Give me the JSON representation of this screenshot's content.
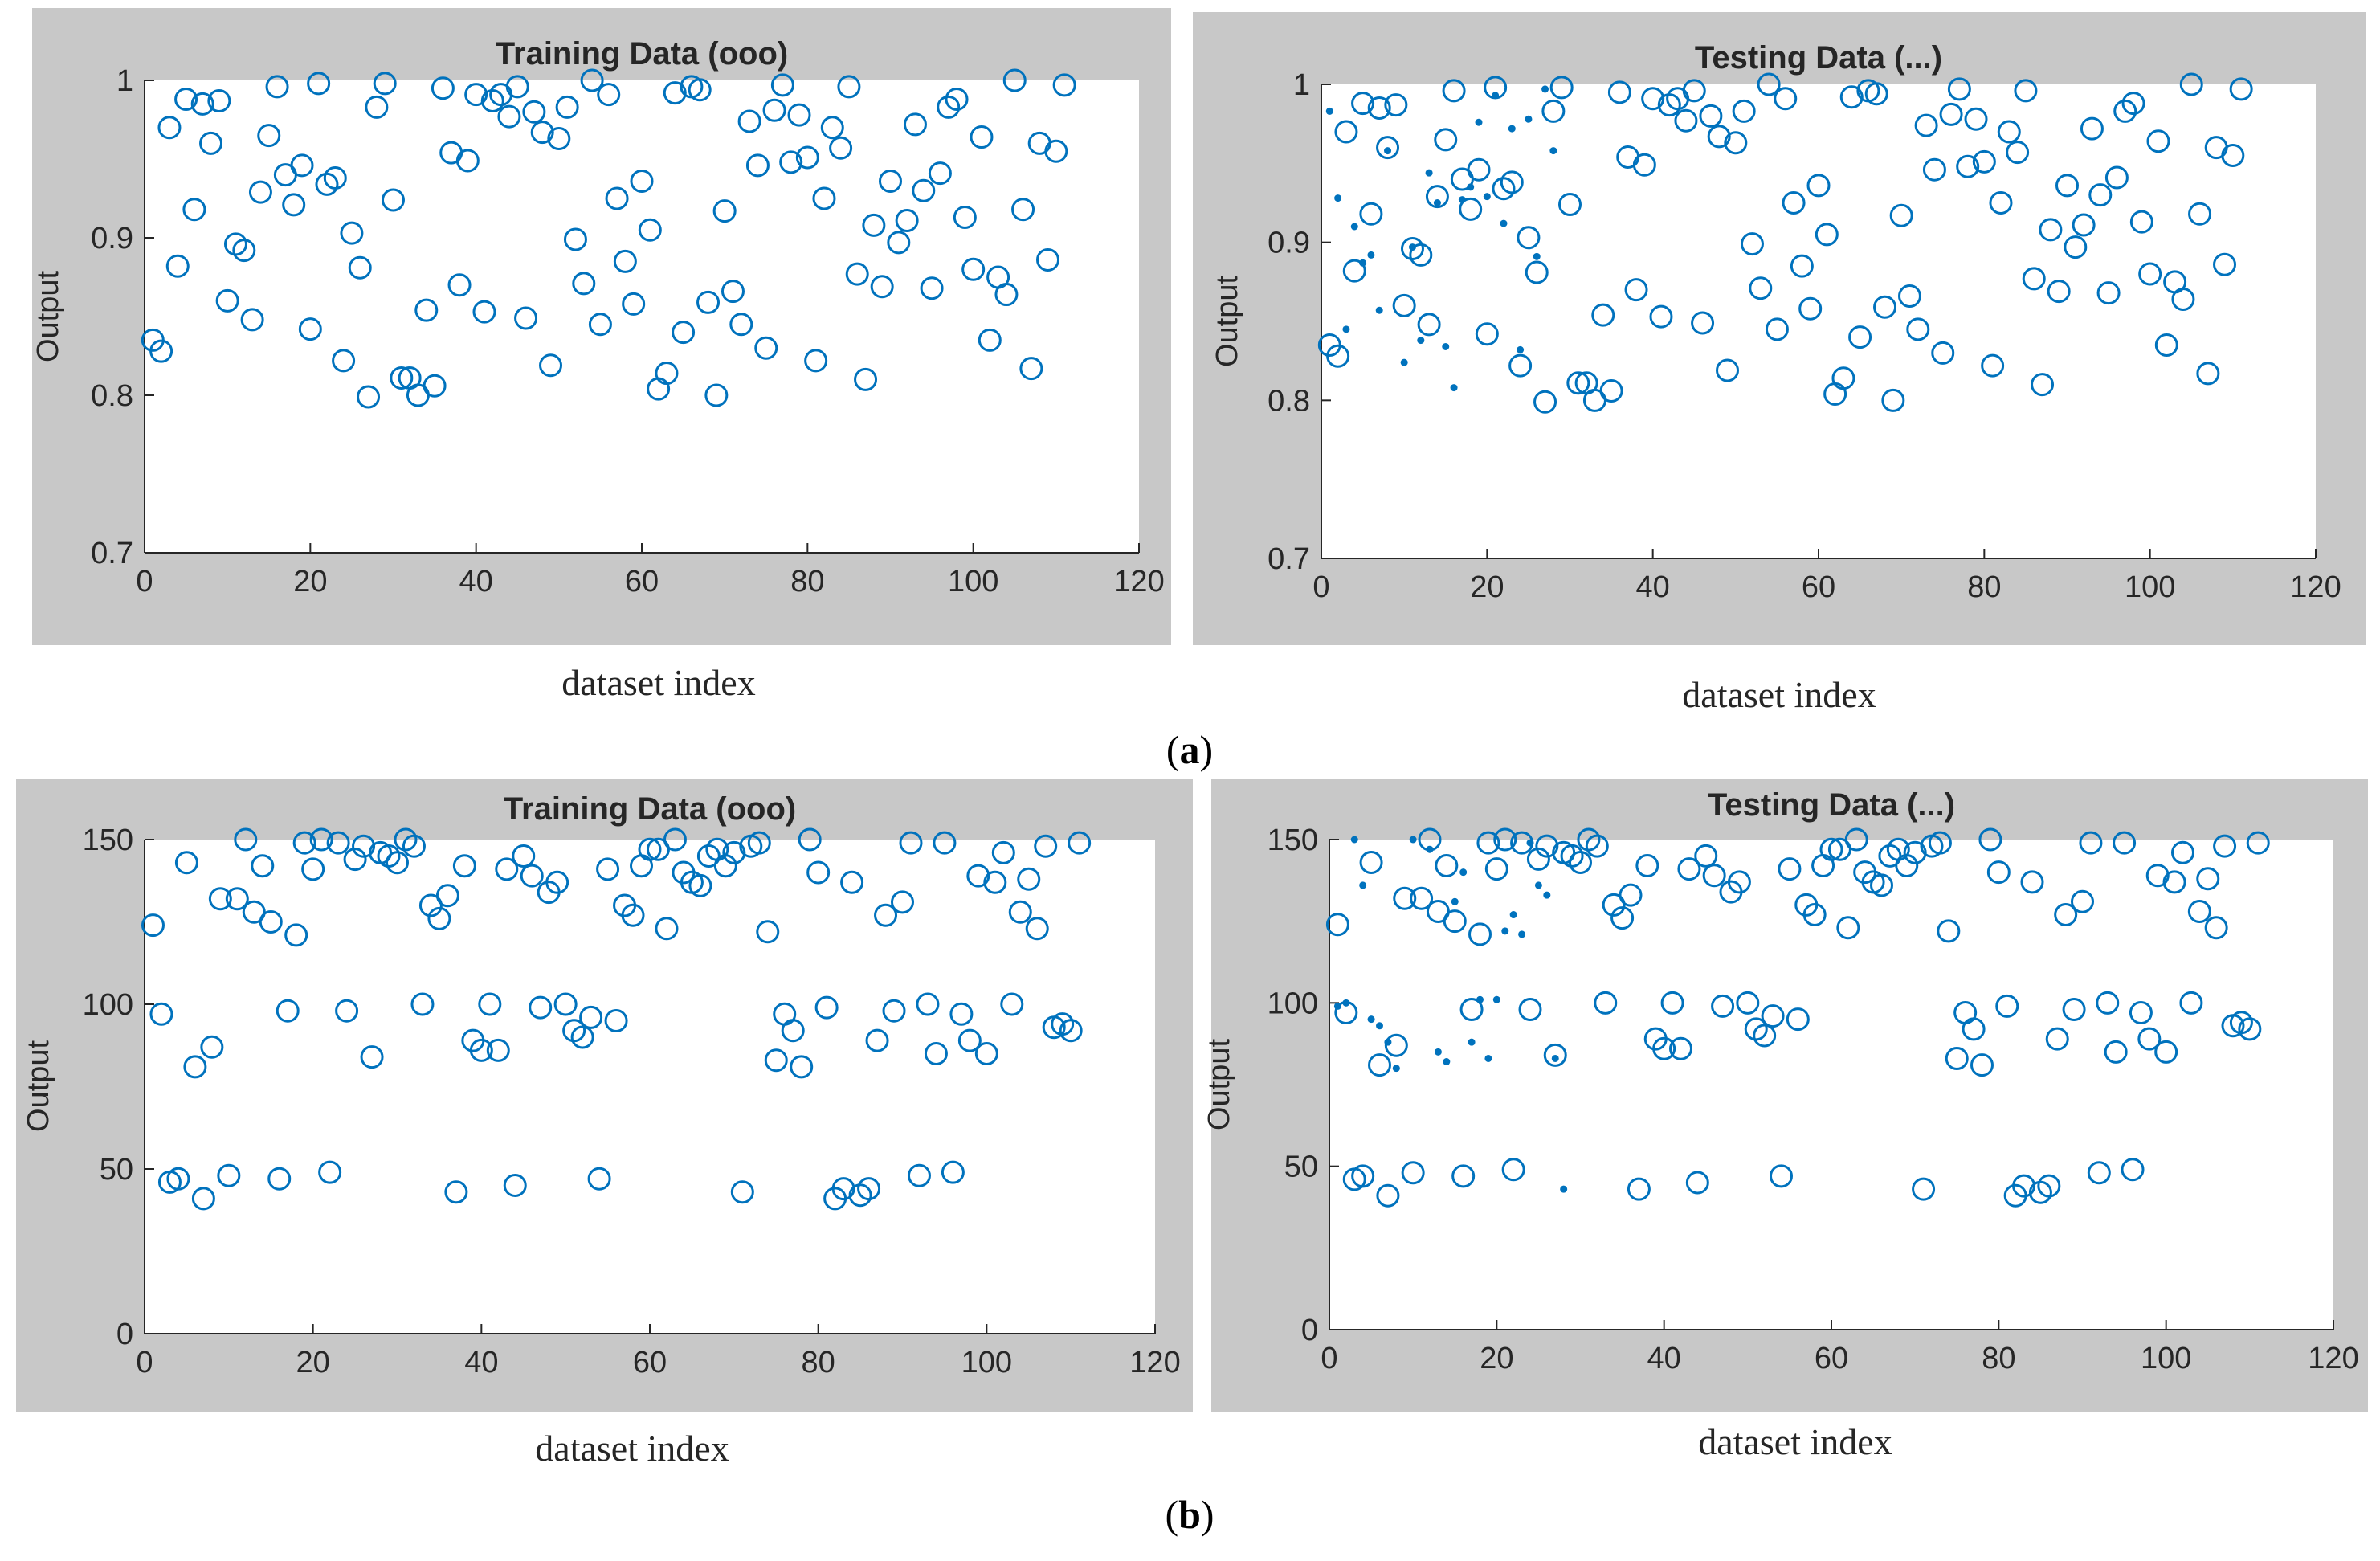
{
  "colors": {
    "frame": "#c8c8c8",
    "marker": "#0072bd",
    "axis": "#262626",
    "background": "#ffffff"
  },
  "panel_labels": {
    "a": "a",
    "b": "b"
  },
  "chart_data": [
    {
      "id": "a-training",
      "type": "scatter",
      "title": "Training Data (ooo)",
      "xlabel": "dataset index",
      "ylabel": "Output",
      "xlim": [
        0,
        120
      ],
      "ylim": [
        0.7,
        1.0
      ],
      "xticks": [
        0,
        20,
        40,
        60,
        80,
        100,
        120
      ],
      "yticks": [
        0.7,
        0.8,
        0.9,
        1.0
      ],
      "ytick_labels": [
        "0.7",
        "0.8",
        "0.9",
        "1"
      ],
      "grid": false,
      "marker": "circle",
      "x": [
        1,
        2,
        3,
        4,
        5,
        6,
        7,
        8,
        9,
        10,
        11,
        12,
        13,
        14,
        15,
        16,
        17,
        18,
        19,
        20,
        21,
        22,
        23,
        24,
        25,
        26,
        27,
        28,
        29,
        30,
        31,
        32,
        33,
        34,
        35,
        36,
        37,
        38,
        39,
        40,
        41,
        42,
        43,
        44,
        45,
        46,
        47,
        48,
        49,
        50,
        51,
        52,
        53,
        54,
        55,
        56,
        57,
        58,
        59,
        60,
        61,
        62,
        63,
        64,
        65,
        66,
        67,
        68,
        69,
        70,
        71,
        72,
        73,
        74,
        75,
        76,
        77,
        78,
        79,
        80,
        81,
        82,
        83,
        84,
        85,
        86,
        87,
        88,
        89,
        90,
        91,
        92,
        93,
        94,
        95,
        96,
        97,
        98,
        99,
        100,
        101,
        102,
        103,
        104,
        105,
        106,
        107,
        108,
        109,
        110,
        111
      ],
      "y": [
        0.835,
        0.828,
        0.97,
        0.882,
        0.988,
        0.918,
        0.985,
        0.96,
        0.987,
        0.86,
        0.896,
        0.892,
        0.848,
        0.929,
        0.965,
        0.996,
        0.94,
        0.921,
        0.946,
        0.842,
        0.998,
        0.934,
        0.938,
        0.822,
        0.903,
        0.881,
        0.799,
        0.983,
        0.998,
        0.924,
        0.811,
        0.811,
        0.8,
        0.854,
        0.806,
        0.995,
        0.954,
        0.87,
        0.949,
        0.991,
        0.853,
        0.987,
        0.991,
        0.977,
        0.996,
        0.849,
        0.98,
        0.967,
        0.819,
        0.963,
        0.983,
        0.899,
        0.871,
        1.0,
        0.845,
        0.991,
        0.925,
        0.885,
        0.858,
        0.936,
        0.905,
        0.804,
        0.814,
        0.992,
        0.84,
        0.996,
        0.994,
        0.859,
        0.8,
        0.917,
        0.866,
        0.845,
        0.974,
        0.946,
        0.83,
        0.981,
        0.997,
        0.948,
        0.978,
        0.951,
        0.822,
        0.925,
        0.97,
        0.957,
        0.996,
        0.877,
        0.81,
        0.908,
        0.869,
        0.936,
        0.897,
        0.911,
        0.972,
        0.93,
        0.868,
        0.941,
        0.983,
        0.988,
        0.913,
        0.88,
        0.964,
        0.835,
        0.875,
        0.864,
        1.0,
        0.918,
        0.817,
        0.96,
        0.886,
        0.955,
        0.997
      ]
    },
    {
      "id": "a-testing",
      "type": "scatter",
      "title": "Testing Data (...)",
      "xlabel": "dataset index",
      "ylabel": "Output",
      "xlim": [
        0,
        120
      ],
      "ylim": [
        0.7,
        1.0
      ],
      "xticks": [
        0,
        20,
        40,
        60,
        80,
        100,
        120
      ],
      "yticks": [
        0.7,
        0.8,
        0.9,
        1.0
      ],
      "ytick_labels": [
        "0.7",
        "0.8",
        "0.9",
        "1"
      ],
      "grid": false,
      "series": [
        {
          "marker": "circle",
          "x": [
            1,
            2,
            3,
            4,
            5,
            6,
            7,
            8,
            9,
            10,
            11,
            12,
            13,
            14,
            15,
            16,
            17,
            18,
            19,
            20,
            21,
            22,
            23,
            24,
            25,
            26,
            27,
            28,
            29,
            30,
            31,
            32,
            33,
            34,
            35,
            36,
            37,
            38,
            39,
            40,
            41,
            42,
            43,
            44,
            45,
            46,
            47,
            48,
            49,
            50,
            51,
            52,
            53,
            54,
            55,
            56,
            57,
            58,
            59,
            60,
            61,
            62,
            63,
            64,
            65,
            66,
            67,
            68,
            69,
            70,
            71,
            72,
            73,
            74,
            75,
            76,
            77,
            78,
            79,
            80,
            81,
            82,
            83,
            84,
            85,
            86,
            87,
            88,
            89,
            90,
            91,
            92,
            93,
            94,
            95,
            96,
            97,
            98,
            99,
            100,
            101,
            102,
            103,
            104,
            105,
            106,
            107,
            108,
            109,
            110,
            111
          ],
          "y": [
            0.835,
            0.828,
            0.97,
            0.882,
            0.988,
            0.918,
            0.985,
            0.96,
            0.987,
            0.86,
            0.896,
            0.892,
            0.848,
            0.929,
            0.965,
            0.996,
            0.94,
            0.921,
            0.946,
            0.842,
            0.998,
            0.934,
            0.938,
            0.822,
            0.903,
            0.881,
            0.799,
            0.983,
            0.998,
            0.924,
            0.811,
            0.811,
            0.8,
            0.854,
            0.806,
            0.995,
            0.954,
            0.87,
            0.949,
            0.991,
            0.853,
            0.987,
            0.991,
            0.977,
            0.996,
            0.849,
            0.98,
            0.967,
            0.819,
            0.963,
            0.983,
            0.899,
            0.871,
            1.0,
            0.845,
            0.991,
            0.925,
            0.885,
            0.858,
            0.936,
            0.905,
            0.804,
            0.814,
            0.992,
            0.84,
            0.996,
            0.994,
            0.859,
            0.8,
            0.917,
            0.866,
            0.845,
            0.974,
            0.946,
            0.83,
            0.981,
            0.997,
            0.948,
            0.978,
            0.951,
            0.822,
            0.925,
            0.97,
            0.957,
            0.996,
            0.877,
            0.81,
            0.908,
            0.869,
            0.936,
            0.897,
            0.911,
            0.972,
            0.93,
            0.868,
            0.941,
            0.983,
            0.988,
            0.913,
            0.88,
            0.964,
            0.835,
            0.875,
            0.864,
            1.0,
            0.918,
            0.817,
            0.96,
            0.886,
            0.955,
            0.997
          ]
        },
        {
          "marker": "dot",
          "x": [
            1,
            2,
            3,
            4,
            5,
            6,
            7,
            8,
            10,
            11,
            12,
            13,
            14,
            15,
            16,
            17,
            18,
            19,
            20,
            21,
            22,
            23,
            24,
            25,
            26,
            27,
            28
          ],
          "y": [
            0.983,
            0.928,
            0.845,
            0.91,
            0.887,
            0.892,
            0.857,
            0.958,
            0.824,
            0.897,
            0.838,
            0.944,
            0.925,
            0.834,
            0.808,
            0.927,
            0.935,
            0.976,
            0.929,
            0.993,
            0.912,
            0.972,
            0.832,
            0.978,
            0.891,
            0.997,
            0.958
          ]
        }
      ]
    },
    {
      "id": "b-training",
      "type": "scatter",
      "title": "Training Data (ooo)",
      "xlabel": "dataset index",
      "ylabel": "Output",
      "xlim": [
        0,
        120
      ],
      "ylim": [
        0,
        150
      ],
      "xticks": [
        0,
        20,
        40,
        60,
        80,
        100,
        120
      ],
      "yticks": [
        0,
        50,
        100,
        150
      ],
      "ytick_labels": [
        "0",
        "50",
        "100",
        "150"
      ],
      "grid": false,
      "marker": "circle",
      "x": [
        1,
        2,
        3,
        4,
        5,
        6,
        7,
        8,
        9,
        10,
        11,
        12,
        13,
        14,
        15,
        16,
        17,
        18,
        19,
        20,
        21,
        22,
        23,
        24,
        25,
        26,
        27,
        28,
        29,
        30,
        31,
        32,
        33,
        34,
        35,
        36,
        37,
        38,
        39,
        40,
        41,
        42,
        43,
        44,
        45,
        46,
        47,
        48,
        49,
        50,
        51,
        52,
        53,
        54,
        55,
        56,
        57,
        58,
        59,
        60,
        61,
        62,
        63,
        64,
        65,
        66,
        67,
        68,
        69,
        70,
        71,
        72,
        73,
        74,
        75,
        76,
        77,
        78,
        79,
        80,
        81,
        82,
        83,
        84,
        85,
        86,
        87,
        88,
        89,
        90,
        91,
        92,
        93,
        94,
        95,
        96,
        97,
        98,
        99,
        100,
        101,
        102,
        103,
        104,
        105,
        106,
        107,
        108,
        109,
        110,
        111
      ],
      "y": [
        124,
        97,
        46,
        47,
        143,
        81,
        41,
        87,
        132,
        48,
        132,
        150,
        128,
        142,
        125,
        47,
        98,
        121,
        149,
        141,
        150,
        49,
        149,
        98,
        144,
        148,
        84,
        146,
        145,
        143,
        150,
        148,
        100,
        130,
        126,
        133,
        43,
        142,
        89,
        86,
        100,
        86,
        141,
        45,
        145,
        139,
        99,
        134,
        137,
        100,
        92,
        90,
        96,
        47,
        141,
        95,
        130,
        127,
        142,
        147,
        147,
        123,
        150,
        140,
        137,
        136,
        145,
        147,
        142,
        146,
        43,
        148,
        149,
        122,
        83,
        97,
        92,
        81,
        150,
        140,
        99,
        41,
        44,
        137,
        42,
        44,
        89,
        127,
        98,
        131,
        149,
        48,
        100,
        85,
        149,
        49,
        97,
        89,
        139,
        85,
        137,
        146,
        100,
        128,
        138,
        123,
        148,
        93,
        94,
        92,
        149
      ]
    },
    {
      "id": "b-testing",
      "type": "scatter",
      "title": "Testing Data (...)",
      "xlabel": "dataset index",
      "ylabel": "Output",
      "xlim": [
        0,
        120
      ],
      "ylim": [
        0,
        150
      ],
      "xticks": [
        0,
        20,
        40,
        60,
        80,
        100,
        120
      ],
      "yticks": [
        0,
        50,
        100,
        150
      ],
      "ytick_labels": [
        "0",
        "50",
        "100",
        "150"
      ],
      "grid": false,
      "series": [
        {
          "marker": "circle",
          "x": [
            1,
            2,
            3,
            4,
            5,
            6,
            7,
            8,
            9,
            10,
            11,
            12,
            13,
            14,
            15,
            16,
            17,
            18,
            19,
            20,
            21,
            22,
            23,
            24,
            25,
            26,
            27,
            28,
            29,
            30,
            31,
            32,
            33,
            34,
            35,
            36,
            37,
            38,
            39,
            40,
            41,
            42,
            43,
            44,
            45,
            46,
            47,
            48,
            49,
            50,
            51,
            52,
            53,
            54,
            55,
            56,
            57,
            58,
            59,
            60,
            61,
            62,
            63,
            64,
            65,
            66,
            67,
            68,
            69,
            70,
            71,
            72,
            73,
            74,
            75,
            76,
            77,
            78,
            79,
            80,
            81,
            82,
            83,
            84,
            85,
            86,
            87,
            88,
            89,
            90,
            91,
            92,
            93,
            94,
            95,
            96,
            97,
            98,
            99,
            100,
            101,
            102,
            103,
            104,
            105,
            106,
            107,
            108,
            109,
            110,
            111
          ],
          "y": [
            124,
            97,
            46,
            47,
            143,
            81,
            41,
            87,
            132,
            48,
            132,
            150,
            128,
            142,
            125,
            47,
            98,
            121,
            149,
            141,
            150,
            49,
            149,
            98,
            144,
            148,
            84,
            146,
            145,
            143,
            150,
            148,
            100,
            130,
            126,
            133,
            43,
            142,
            89,
            86,
            100,
            86,
            141,
            45,
            145,
            139,
            99,
            134,
            137,
            100,
            92,
            90,
            96,
            47,
            141,
            95,
            130,
            127,
            142,
            147,
            147,
            123,
            150,
            140,
            137,
            136,
            145,
            147,
            142,
            146,
            43,
            148,
            149,
            122,
            83,
            97,
            92,
            81,
            150,
            140,
            99,
            41,
            44,
            137,
            42,
            44,
            89,
            127,
            98,
            131,
            149,
            48,
            100,
            85,
            149,
            49,
            97,
            89,
            139,
            85,
            137,
            146,
            100,
            128,
            138,
            123,
            148,
            93,
            94,
            92,
            149
          ]
        },
        {
          "marker": "dot",
          "x": [
            1,
            2,
            3,
            4,
            5,
            6,
            7,
            8,
            10,
            12,
            13,
            14,
            15,
            16,
            17,
            18,
            19,
            20,
            21,
            22,
            23,
            24,
            25,
            26,
            27,
            28
          ],
          "y": [
            99,
            100,
            150,
            136,
            95,
            93,
            88,
            80,
            150,
            147,
            85,
            82,
            131,
            140,
            88,
            101,
            83,
            101,
            122,
            127,
            121,
            149,
            136,
            133,
            83,
            43
          ]
        }
      ]
    }
  ]
}
